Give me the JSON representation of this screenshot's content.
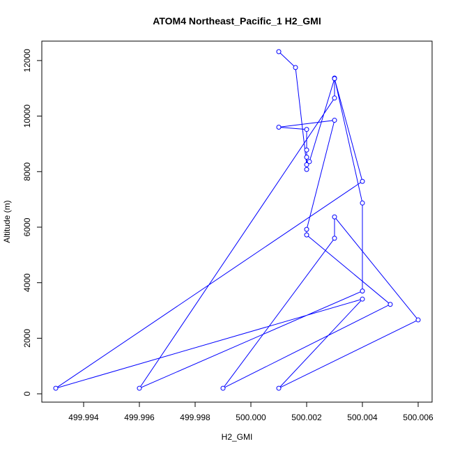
{
  "chart_data": {
    "type": "line",
    "title": "ATOM4 Northeast_Pacific_1 H2_GMI",
    "xlabel": "H2_GMI",
    "ylabel": "Altitude (m)",
    "xlim": [
      499.9925,
      500.0065
    ],
    "ylim": [
      -300,
      12700
    ],
    "xticks": [
      499.994,
      499.996,
      499.998,
      500.0,
      500.002,
      500.004,
      500.006
    ],
    "xtick_labels": [
      "499.994",
      "499.996",
      "499.998",
      "500.000",
      "500.002",
      "500.004",
      "500.006"
    ],
    "yticks": [
      0,
      2000,
      4000,
      6000,
      8000,
      10000,
      12000
    ],
    "ytick_labels": [
      "0",
      "2000",
      "4000",
      "6000",
      "8000",
      "10000",
      "12000"
    ],
    "grid": false,
    "series": [
      {
        "color": "#0000ff",
        "marker": "open-circle",
        "points": [
          {
            "x": 500.001,
            "y": 12320
          },
          {
            "x": 500.0016,
            "y": 11750
          },
          {
            "x": 500.002,
            "y": 8250
          },
          {
            "x": 500.002,
            "y": 8080
          },
          {
            "x": 500.002,
            "y": 8520
          },
          {
            "x": 500.002,
            "y": 8780
          },
          {
            "x": 500.002,
            "y": 9520
          },
          {
            "x": 500.001,
            "y": 9600
          },
          {
            "x": 500.003,
            "y": 9850
          },
          {
            "x": 500.002,
            "y": 5920
          },
          {
            "x": 500.002,
            "y": 5720
          },
          {
            "x": 500.005,
            "y": 3220
          },
          {
            "x": 499.999,
            "y": 200
          },
          {
            "x": 500.003,
            "y": 5600
          },
          {
            "x": 500.003,
            "y": 6370
          },
          {
            "x": 500.006,
            "y": 2660
          },
          {
            "x": 500.001,
            "y": 200
          },
          {
            "x": 500.004,
            "y": 3410
          },
          {
            "x": 499.993,
            "y": 200
          },
          {
            "x": 500.004,
            "y": 7650
          },
          {
            "x": 500.003,
            "y": 11350
          },
          {
            "x": 500.003,
            "y": 11370
          },
          {
            "x": 500.004,
            "y": 6870
          },
          {
            "x": 500.004,
            "y": 3700
          },
          {
            "x": 499.996,
            "y": 200
          },
          {
            "x": 500.003,
            "y": 10650
          },
          {
            "x": 500.003,
            "y": 11350
          },
          {
            "x": 500.0021,
            "y": 8360
          }
        ]
      }
    ]
  }
}
